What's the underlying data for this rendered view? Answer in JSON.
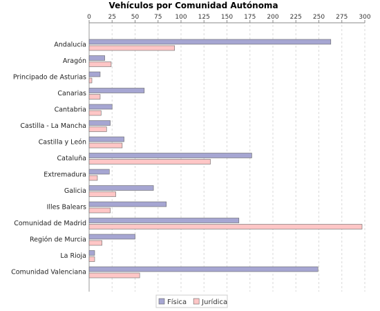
{
  "chart_data": {
    "type": "bar",
    "orientation": "horizontal",
    "title": "Vehículos por Comunidad Autónoma",
    "xlabel": "",
    "ylabel": "",
    "xlim": [
      0,
      300
    ],
    "x_ticks": [
      0,
      25,
      50,
      75,
      100,
      125,
      150,
      175,
      200,
      225,
      250,
      275,
      300
    ],
    "x_axis_position": "top",
    "grid": true,
    "legend_position": "bottom-center",
    "categories": [
      "Andalucía",
      "Aragón",
      "Principado de Asturias",
      "Canarias",
      "Cantabria",
      "Castilla - La Mancha",
      "Castilla y León",
      "Cataluña",
      "Extremadura",
      "Galicia",
      "Illes Balears",
      "Comunidad de Madrid",
      "Región de Murcia",
      "La Rioja",
      "Comunidad Valenciana"
    ],
    "series": [
      {
        "name": "Física",
        "color": "#a6a6d2",
        "values": [
          263,
          17,
          12,
          60,
          25,
          23,
          38,
          177,
          22,
          70,
          84,
          163,
          50,
          6,
          249
        ]
      },
      {
        "name": "Jurídica",
        "color": "#ffc6c6",
        "values": [
          93,
          24,
          3,
          12,
          13,
          19,
          36,
          132,
          9,
          29,
          23,
          297,
          14,
          6,
          55
        ]
      }
    ]
  }
}
